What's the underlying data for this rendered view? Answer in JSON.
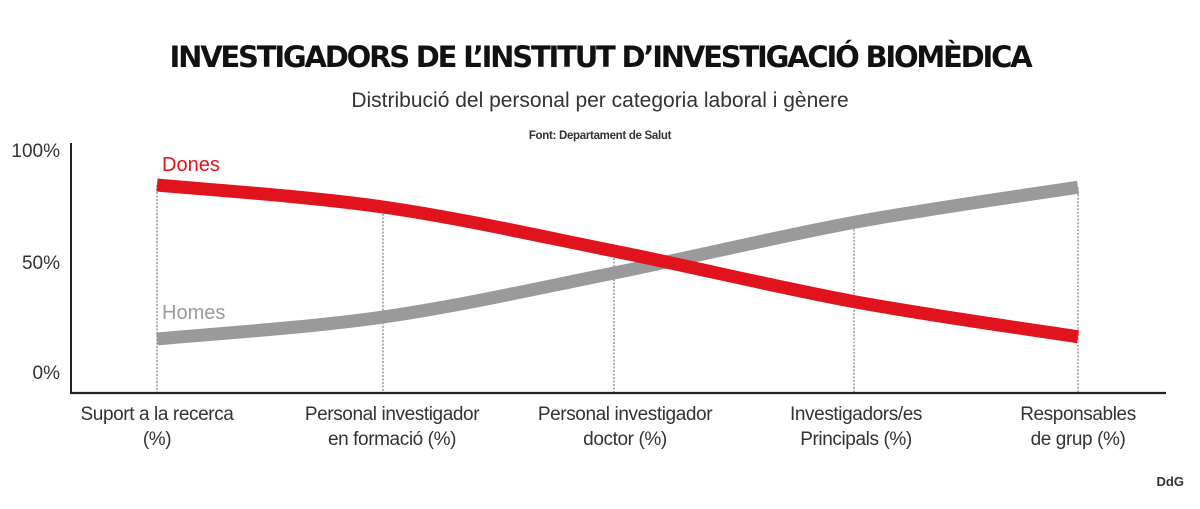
{
  "header": {
    "title": "INVESTIGADORS DE L’INSTITUT D’INVESTIGACIÓ BIOMÈDICA",
    "subtitle": "Distribució del personal per categoria laboral i gènere",
    "source": "Font: Departament de Salut"
  },
  "footer": {
    "credit": "DdG"
  },
  "axis": {
    "y_ticks": [
      "100%",
      "50%",
      "0%"
    ]
  },
  "categories": [
    {
      "line1": "Suport a la recerca",
      "line2": "(%)"
    },
    {
      "line1": "Personal investigador",
      "line2": "en formació (%)"
    },
    {
      "line1": "Personal investigador",
      "line2": "doctor (%)"
    },
    {
      "line1": "Investigadors/es",
      "line2": "Principals (%)"
    },
    {
      "line1": "Responsables",
      "line2": "de grup (%)"
    }
  ],
  "legend": {
    "dones": "Dones",
    "homes": "Homes"
  },
  "colors": {
    "dones": "#e1141e",
    "homes": "#9a9a9c",
    "axis": "#222222",
    "guides": "#888888"
  },
  "chart_data": {
    "type": "line",
    "title": "INVESTIGADORS DE L’INSTITUT D’INVESTIGACIÓ BIOMÈDICA",
    "subtitle": "Distribució del personal per categoria laboral i gènere",
    "source": "Font: Departament de Salut",
    "categories": [
      "Suport a la recerca (%)",
      "Personal investigador en formació (%)",
      "Personal investigador doctor (%)",
      "Investigadors/es Principals (%)",
      "Responsables de grup (%)"
    ],
    "series": [
      {
        "name": "Dones",
        "color": "#e1141e",
        "values": [
          85,
          75,
          55,
          32,
          16
        ]
      },
      {
        "name": "Homes",
        "color": "#9a9a9c",
        "values": [
          15,
          25,
          45,
          68,
          84
        ]
      }
    ],
    "xlabel": "",
    "ylabel": "",
    "ylim": [
      0,
      100
    ],
    "y_ticks": [
      0,
      50,
      100
    ],
    "y_tick_labels": [
      "0%",
      "50%",
      "100%"
    ],
    "grid": false,
    "vertical_guides": true,
    "legend_position": "inline labels above line starts"
  }
}
